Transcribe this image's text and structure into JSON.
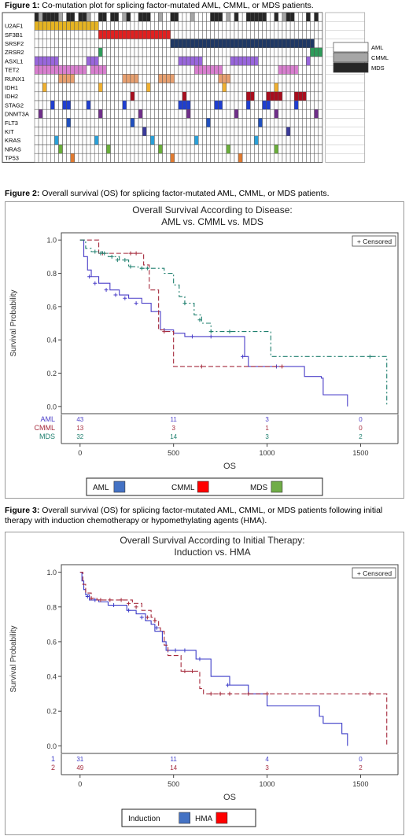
{
  "figure1": {
    "caption_bold": "Figure 1:",
    "caption_text": " Co-mutation plot for splicing factor-mutated AML, CMML, or MDS patients.",
    "genes": [
      "U2AF1",
      "SF3B1",
      "SRSF2",
      "ZRSR2",
      "ASXL1",
      "TET2",
      "RUNX1",
      "IDH1",
      "IDH2",
      "STAG2",
      "DNMT3A",
      "FLT3",
      "KIT",
      "KRAS",
      "NRAS",
      "TP53"
    ],
    "legend": [
      {
        "label": "AML",
        "color": "#ffffff"
      },
      {
        "label": "CMML",
        "color": "#a6a6a6"
      },
      {
        "label": "MDS",
        "color": "#262626"
      }
    ],
    "colors": {
      "U2AF1": "#e6b422",
      "SF3B1": "#e02020",
      "SRSF2": "#1f3864",
      "ZRSR2": "#2e9c5a",
      "ASXL1": "#9966dd",
      "TET2": "#d97fd0",
      "RUNX1": "#e8a070",
      "IDH1": "#f0b030",
      "IDH2": "#a80e1e",
      "STAG2": "#1f3ed0",
      "DNMT3A": "#702f8a",
      "FLT3": "#2050c0",
      "KIT": "#3a3a9a",
      "KRAS": "#2aa0d8",
      "NRAS": "#6aaf3a",
      "TP53": "#e07a30"
    }
  },
  "figure2": {
    "caption_bold": "Figure 2:",
    "caption_text": " Overall survival (OS) for splicing factor-mutated AML, CMML, or MDS patients.",
    "chart_data": {
      "type": "line",
      "title": "Overall Survival According to Disease:",
      "subtitle": "AML vs. CMML vs. MDS",
      "xlabel": "OS",
      "ylabel": "Survival Probability",
      "xlim": [
        -100,
        1700
      ],
      "ylim": [
        0,
        1.0
      ],
      "xticks": [
        0,
        500,
        1000,
        1500
      ],
      "yticks": [
        0.0,
        0.2,
        0.4,
        0.6,
        0.8,
        1.0
      ],
      "censored_label": "+ Censored",
      "series": [
        {
          "name": "AML",
          "color": "#4a3ec8",
          "dash": "",
          "x": [
            0,
            20,
            40,
            60,
            100,
            160,
            210,
            260,
            330,
            380,
            430,
            500,
            560,
            600,
            660,
            720,
            880,
            900,
            1000,
            1100,
            1200,
            1290,
            1300,
            1430
          ],
          "y": [
            1.0,
            0.9,
            0.82,
            0.78,
            0.74,
            0.7,
            0.67,
            0.65,
            0.62,
            0.57,
            0.46,
            0.44,
            0.42,
            0.42,
            0.42,
            0.42,
            0.3,
            0.24,
            0.24,
            0.24,
            0.18,
            0.17,
            0.07,
            0.0
          ],
          "cx": [
            50,
            80,
            140,
            190,
            240,
            300,
            450,
            600,
            700,
            870,
            1050
          ],
          "cy": [
            0.78,
            0.74,
            0.7,
            0.67,
            0.65,
            0.62,
            0.46,
            0.42,
            0.42,
            0.3,
            0.24
          ]
        },
        {
          "name": "CMML",
          "color": "#a52a3c",
          "dash": "6,3",
          "x": [
            0,
            100,
            160,
            320,
            340,
            370,
            420,
            450,
            500,
            550,
            1000,
            1100
          ],
          "y": [
            1.0,
            0.92,
            0.92,
            0.92,
            0.85,
            0.7,
            0.46,
            0.45,
            0.24,
            0.24,
            0.24,
            0.24
          ],
          "cx": [
            120,
            270,
            300,
            450,
            650,
            1080
          ],
          "cy": [
            0.92,
            0.92,
            0.92,
            0.45,
            0.24,
            0.24
          ]
        },
        {
          "name": "MDS",
          "color": "#1e7f6e",
          "dash": "6,3,2,3",
          "x": [
            0,
            30,
            60,
            120,
            150,
            210,
            260,
            310,
            410,
            450,
            500,
            530,
            560,
            610,
            650,
            700,
            1000,
            1020,
            1100,
            1500,
            1540,
            1580,
            1620,
            1640
          ],
          "y": [
            1.0,
            0.95,
            0.93,
            0.92,
            0.9,
            0.88,
            0.84,
            0.83,
            0.83,
            0.8,
            0.73,
            0.66,
            0.62,
            0.55,
            0.5,
            0.45,
            0.45,
            0.3,
            0.3,
            0.3,
            0.3,
            0.3,
            0.3,
            0.0
          ],
          "cx": [
            80,
            110,
            130,
            170,
            200,
            240,
            270,
            330,
            360,
            560,
            640,
            700,
            800,
            1550
          ],
          "cy": [
            0.93,
            0.92,
            0.92,
            0.9,
            0.88,
            0.88,
            0.84,
            0.83,
            0.83,
            0.62,
            0.52,
            0.45,
            0.45,
            0.3
          ]
        }
      ],
      "risk_table": {
        "rows": [
          {
            "label": "AML",
            "color": "#4a3ec8",
            "values": [
              "43",
              "11",
              "3",
              "0"
            ]
          },
          {
            "label": "CMML",
            "color": "#a52a3c",
            "values": [
              "13",
              "3",
              "1",
              "0"
            ]
          },
          {
            "label": "MDS",
            "color": "#1e7f6e",
            "values": [
              "32",
              "14",
              "3",
              "2"
            ]
          }
        ],
        "at": [
          0,
          500,
          1000,
          1500
        ]
      },
      "legend": [
        {
          "label": "AML",
          "color": "#4472c4"
        },
        {
          "label": "CMML",
          "color": "#ff0000"
        },
        {
          "label": "MDS",
          "color": "#70ad47"
        }
      ]
    }
  },
  "figure3": {
    "caption_bold": "Figure 3:",
    "caption_text": " Overall survival (OS) for splicing factor-mutated AML, CMML, or MDS patients following initial therapy with induction chemotherapy or hypomethylating agents (HMA).",
    "chart_data": {
      "type": "line",
      "title": "Overall Survival According to Initial Therapy:",
      "subtitle": "Induction vs. HMA",
      "xlabel": "OS",
      "ylabel": "Survival Probability",
      "xlim": [
        -100,
        1700
      ],
      "ylim": [
        0,
        1.0
      ],
      "xticks": [
        0,
        500,
        1000,
        1500
      ],
      "yticks": [
        0.0,
        0.2,
        0.4,
        0.6,
        0.8,
        1.0
      ],
      "censored_label": "+ Censored",
      "series": [
        {
          "name": "Induction",
          "color": "#3b3bc8",
          "dash": "",
          "x": [
            0,
            10,
            20,
            30,
            50,
            70,
            100,
            150,
            250,
            300,
            350,
            380,
            400,
            440,
            460,
            500,
            560,
            620,
            650,
            700,
            800,
            900,
            1000,
            1100,
            1200,
            1280,
            1300,
            1400,
            1430
          ],
          "y": [
            1.0,
            0.95,
            0.9,
            0.87,
            0.84,
            0.84,
            0.83,
            0.81,
            0.78,
            0.76,
            0.72,
            0.7,
            0.66,
            0.6,
            0.55,
            0.55,
            0.55,
            0.5,
            0.5,
            0.4,
            0.35,
            0.3,
            0.23,
            0.23,
            0.23,
            0.17,
            0.13,
            0.07,
            0.0
          ],
          "cx": [
            40,
            80,
            180,
            260,
            330,
            410,
            470,
            510,
            560,
            640,
            790
          ],
          "cy": [
            0.86,
            0.84,
            0.81,
            0.78,
            0.74,
            0.68,
            0.55,
            0.55,
            0.55,
            0.5,
            0.35
          ]
        },
        {
          "name": "HMA",
          "color": "#a52a3c",
          "dash": "6,3",
          "x": [
            0,
            15,
            30,
            60,
            90,
            130,
            200,
            280,
            330,
            380,
            400,
            420,
            430,
            450,
            470,
            540,
            600,
            640,
            660,
            700,
            1000,
            1500,
            1600,
            1640
          ],
          "y": [
            1.0,
            0.93,
            0.88,
            0.85,
            0.84,
            0.84,
            0.84,
            0.82,
            0.78,
            0.74,
            0.72,
            0.68,
            0.66,
            0.58,
            0.52,
            0.43,
            0.43,
            0.33,
            0.3,
            0.3,
            0.3,
            0.3,
            0.3,
            0.0
          ],
          "cx": [
            60,
            110,
            160,
            220,
            260,
            300,
            360,
            400,
            560,
            600,
            700,
            750,
            800,
            900,
            1000,
            1550
          ],
          "cy": [
            0.85,
            0.84,
            0.84,
            0.84,
            0.82,
            0.8,
            0.74,
            0.72,
            0.43,
            0.43,
            0.3,
            0.3,
            0.3,
            0.3,
            0.3,
            0.3
          ]
        }
      ],
      "risk_table": {
        "rows": [
          {
            "label": "1",
            "color": "#3b3bc8",
            "values": [
              "31",
              "11",
              "4",
              "0"
            ]
          },
          {
            "label": "2",
            "color": "#a52a3c",
            "values": [
              "49",
              "14",
              "3",
              "2"
            ]
          }
        ],
        "at": [
          0,
          500,
          1000,
          1500
        ]
      },
      "legend": [
        {
          "label": "Induction",
          "color": "#4472c4"
        },
        {
          "label": "HMA",
          "color": "#ff0000"
        }
      ]
    }
  }
}
